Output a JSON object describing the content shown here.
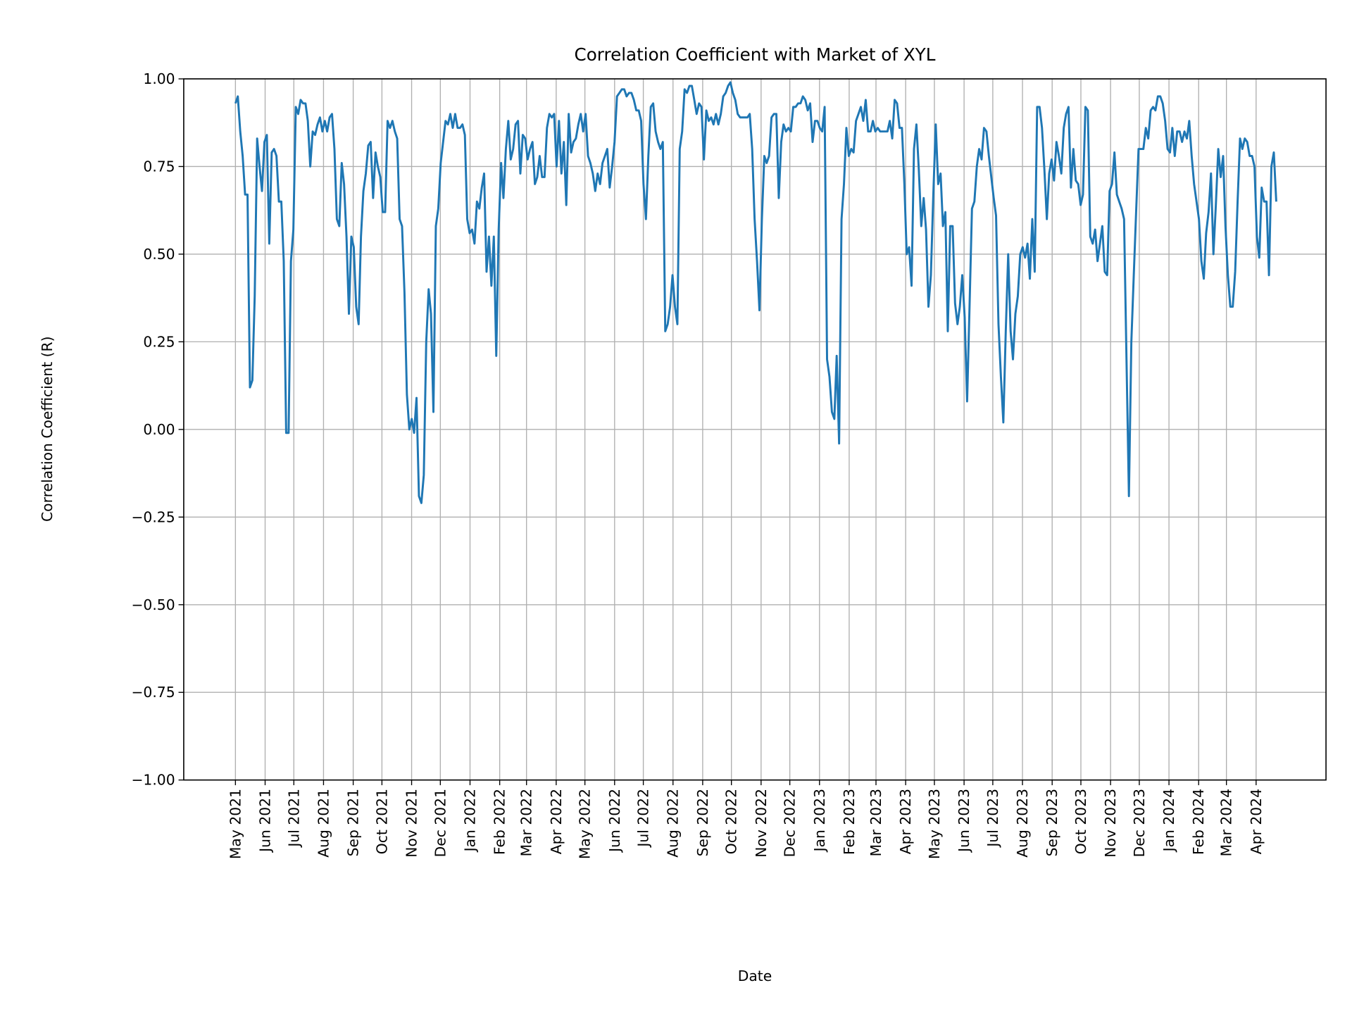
{
  "chart_data": {
    "type": "line",
    "title": "Correlation Coefficient with Market of XYL",
    "xlabel": "Date",
    "ylabel": "Correlation Coefficient (R)",
    "ylim": [
      -1.0,
      1.0
    ],
    "xlim": [
      "2021-03-08",
      "2024-06-13"
    ],
    "yticks": [
      -1.0,
      -0.75,
      -0.5,
      -0.25,
      0.0,
      0.25,
      0.5,
      0.75,
      1.0
    ],
    "ytick_labels": [
      "−1.00",
      "−0.75",
      "−0.50",
      "−0.25",
      "0.00",
      "0.25",
      "0.50",
      "0.75",
      "1.00"
    ],
    "xticks": [
      "2021-05-01",
      "2021-06-01",
      "2021-07-01",
      "2021-08-01",
      "2021-09-01",
      "2021-10-01",
      "2021-11-01",
      "2021-12-01",
      "2022-01-01",
      "2022-02-01",
      "2022-03-01",
      "2022-04-01",
      "2022-05-01",
      "2022-06-01",
      "2022-07-01",
      "2022-08-01",
      "2022-09-01",
      "2022-10-01",
      "2022-11-01",
      "2022-12-01",
      "2023-01-01",
      "2023-02-01",
      "2023-03-01",
      "2023-04-01",
      "2023-05-01",
      "2023-06-01",
      "2023-07-01",
      "2023-08-01",
      "2023-09-01",
      "2023-10-01",
      "2023-11-01",
      "2023-12-01",
      "2024-01-01",
      "2024-02-01",
      "2024-03-01",
      "2024-04-01"
    ],
    "xtick_labels": [
      "May 2021",
      "Jun 2021",
      "Jul 2021",
      "Aug 2021",
      "Sep 2021",
      "Oct 2021",
      "Nov 2021",
      "Dec 2021",
      "Jan 2022",
      "Feb 2022",
      "Mar 2022",
      "Apr 2022",
      "May 2022",
      "Jun 2022",
      "Jul 2022",
      "Aug 2022",
      "Sep 2022",
      "Oct 2022",
      "Nov 2022",
      "Dec 2022",
      "Jan 2023",
      "Feb 2023",
      "Mar 2023",
      "Apr 2023",
      "May 2023",
      "Jun 2023",
      "Jul 2023",
      "Aug 2023",
      "Sep 2023",
      "Oct 2023",
      "Nov 2023",
      "Dec 2023",
      "Jan 2024",
      "Feb 2024",
      "Mar 2024",
      "Apr 2024"
    ],
    "grid": true,
    "series": [
      {
        "name": "XYL",
        "color": "#1f77b4",
        "start_date": "2021-05-01",
        "end_date": "2024-04-22",
        "values": [
          0.93,
          0.95,
          0.85,
          0.78,
          0.67,
          0.67,
          0.12,
          0.14,
          0.38,
          0.83,
          0.75,
          0.68,
          0.82,
          0.84,
          0.53,
          0.79,
          0.8,
          0.78,
          0.65,
          0.65,
          0.48,
          -0.01,
          -0.01,
          0.48,
          0.57,
          0.92,
          0.9,
          0.94,
          0.93,
          0.93,
          0.88,
          0.75,
          0.85,
          0.84,
          0.87,
          0.89,
          0.85,
          0.88,
          0.85,
          0.89,
          0.9,
          0.8,
          0.6,
          0.58,
          0.76,
          0.7,
          0.55,
          0.33,
          0.55,
          0.52,
          0.35,
          0.3,
          0.55,
          0.68,
          0.73,
          0.81,
          0.82,
          0.66,
          0.79,
          0.75,
          0.72,
          0.62,
          0.62,
          0.88,
          0.86,
          0.88,
          0.85,
          0.83,
          0.6,
          0.58,
          0.39,
          0.1,
          0.0,
          0.03,
          -0.01,
          0.09,
          -0.19,
          -0.21,
          -0.13,
          0.25,
          0.4,
          0.33,
          0.05,
          0.58,
          0.63,
          0.76,
          0.82,
          0.88,
          0.87,
          0.9,
          0.86,
          0.9,
          0.86,
          0.86,
          0.87,
          0.84,
          0.6,
          0.56,
          0.57,
          0.53,
          0.65,
          0.63,
          0.69,
          0.73,
          0.45,
          0.55,
          0.41,
          0.55,
          0.21,
          0.57,
          0.76,
          0.66,
          0.8,
          0.88,
          0.77,
          0.8,
          0.87,
          0.88,
          0.73,
          0.84,
          0.83,
          0.77,
          0.8,
          0.82,
          0.7,
          0.72,
          0.78,
          0.72,
          0.72,
          0.86,
          0.9,
          0.89,
          0.9,
          0.75,
          0.88,
          0.73,
          0.82,
          0.64,
          0.9,
          0.79,
          0.82,
          0.83,
          0.87,
          0.9,
          0.85,
          0.9,
          0.78,
          0.76,
          0.73,
          0.68,
          0.73,
          0.7,
          0.76,
          0.78,
          0.8,
          0.69,
          0.75,
          0.82,
          0.95,
          0.96,
          0.97,
          0.97,
          0.95,
          0.96,
          0.96,
          0.94,
          0.91,
          0.91,
          0.88,
          0.7,
          0.6,
          0.78,
          0.92,
          0.93,
          0.85,
          0.82,
          0.8,
          0.82,
          0.28,
          0.3,
          0.35,
          0.44,
          0.35,
          0.3,
          0.8,
          0.85,
          0.97,
          0.96,
          0.98,
          0.98,
          0.94,
          0.9,
          0.93,
          0.92,
          0.77,
          0.91,
          0.88,
          0.89,
          0.87,
          0.9,
          0.87,
          0.9,
          0.95,
          0.96,
          0.98,
          0.99,
          0.96,
          0.94,
          0.9,
          0.89,
          0.89,
          0.89,
          0.89,
          0.9,
          0.8,
          0.6,
          0.48,
          0.34,
          0.6,
          0.78,
          0.76,
          0.78,
          0.89,
          0.9,
          0.9,
          0.66,
          0.82,
          0.87,
          0.85,
          0.86,
          0.85,
          0.92,
          0.92,
          0.93,
          0.93,
          0.95,
          0.94,
          0.91,
          0.93,
          0.82,
          0.88,
          0.88,
          0.86,
          0.85,
          0.92,
          0.2,
          0.15,
          0.05,
          0.03,
          0.21,
          -0.04,
          0.6,
          0.7,
          0.86,
          0.78,
          0.8,
          0.79,
          0.88,
          0.9,
          0.92,
          0.88,
          0.94,
          0.85,
          0.85,
          0.88,
          0.85,
          0.86,
          0.85,
          0.85,
          0.85,
          0.85,
          0.88,
          0.83,
          0.94,
          0.93,
          0.86,
          0.86,
          0.7,
          0.5,
          0.52,
          0.41,
          0.8,
          0.87,
          0.74,
          0.58,
          0.66,
          0.57,
          0.35,
          0.44,
          0.67,
          0.87,
          0.7,
          0.73,
          0.58,
          0.62,
          0.28,
          0.58,
          0.58,
          0.36,
          0.3,
          0.35,
          0.44,
          0.32,
          0.08,
          0.35,
          0.63,
          0.65,
          0.75,
          0.8,
          0.77,
          0.86,
          0.85,
          0.78,
          0.72,
          0.66,
          0.61,
          0.3,
          0.15,
          0.02,
          0.28,
          0.5,
          0.28,
          0.2,
          0.33,
          0.38,
          0.5,
          0.52,
          0.49,
          0.53,
          0.43,
          0.6,
          0.45,
          0.92,
          0.92,
          0.86,
          0.74,
          0.6,
          0.73,
          0.77,
          0.71,
          0.82,
          0.78,
          0.73,
          0.86,
          0.9,
          0.92,
          0.69,
          0.8,
          0.71,
          0.7,
          0.64,
          0.67,
          0.92,
          0.91,
          0.55,
          0.53,
          0.57,
          0.48,
          0.53,
          0.58,
          0.45,
          0.44,
          0.68,
          0.7,
          0.79,
          0.67,
          0.65,
          0.63,
          0.6,
          0.2,
          -0.19,
          0.25,
          0.44,
          0.62,
          0.8,
          0.8,
          0.8,
          0.86,
          0.83,
          0.91,
          0.92,
          0.91,
          0.95,
          0.95,
          0.93,
          0.88,
          0.8,
          0.79,
          0.86,
          0.78,
          0.85,
          0.85,
          0.82,
          0.85,
          0.83,
          0.88,
          0.78,
          0.7,
          0.65,
          0.6,
          0.48,
          0.43,
          0.56,
          0.62,
          0.73,
          0.5,
          0.64,
          0.8,
          0.72,
          0.78,
          0.58,
          0.44,
          0.35,
          0.35,
          0.45,
          0.65,
          0.83,
          0.8,
          0.83,
          0.82,
          0.78,
          0.78,
          0.75,
          0.55,
          0.49,
          0.69,
          0.65,
          0.65,
          0.44,
          0.75,
          0.79,
          0.65
        ]
      }
    ]
  }
}
